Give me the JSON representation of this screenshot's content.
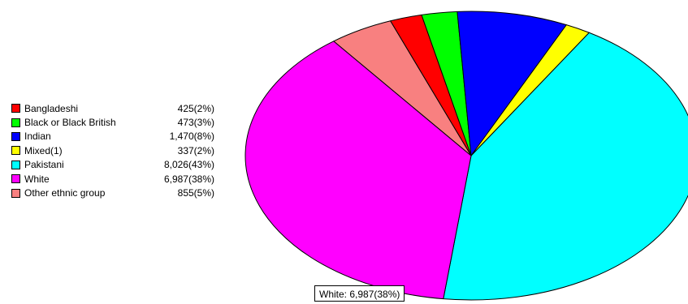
{
  "chart_data": {
    "type": "pie",
    "title": "",
    "start_category": "Pakistani",
    "direction": "clockwise",
    "slices": [
      {
        "label": "Bangladeshi",
        "value": 425,
        "value_text": "425(2%)",
        "color": "#ff0000"
      },
      {
        "label": "Black or Black British",
        "value": 473,
        "value_text": "473(3%)",
        "color": "#00ff00"
      },
      {
        "label": "Indian",
        "value": 1470,
        "value_text": "1,470(8%)",
        "color": "#0000ff"
      },
      {
        "label": "Mixed(1)",
        "value": 337,
        "value_text": "337(2%)",
        "color": "#ffff00"
      },
      {
        "label": "Pakistani",
        "value": 8026,
        "value_text": "8,026(43%)",
        "color": "#00ffff"
      },
      {
        "label": "White",
        "value": 6987,
        "value_text": "6,987(38%)",
        "color": "#ff00ff"
      },
      {
        "label": "Other ethnic group",
        "value": 855,
        "value_text": "855(5%)",
        "color": "#f88080"
      }
    ],
    "legend_position": "left"
  },
  "tooltip": {
    "text": "White: 6,987(38%)"
  }
}
